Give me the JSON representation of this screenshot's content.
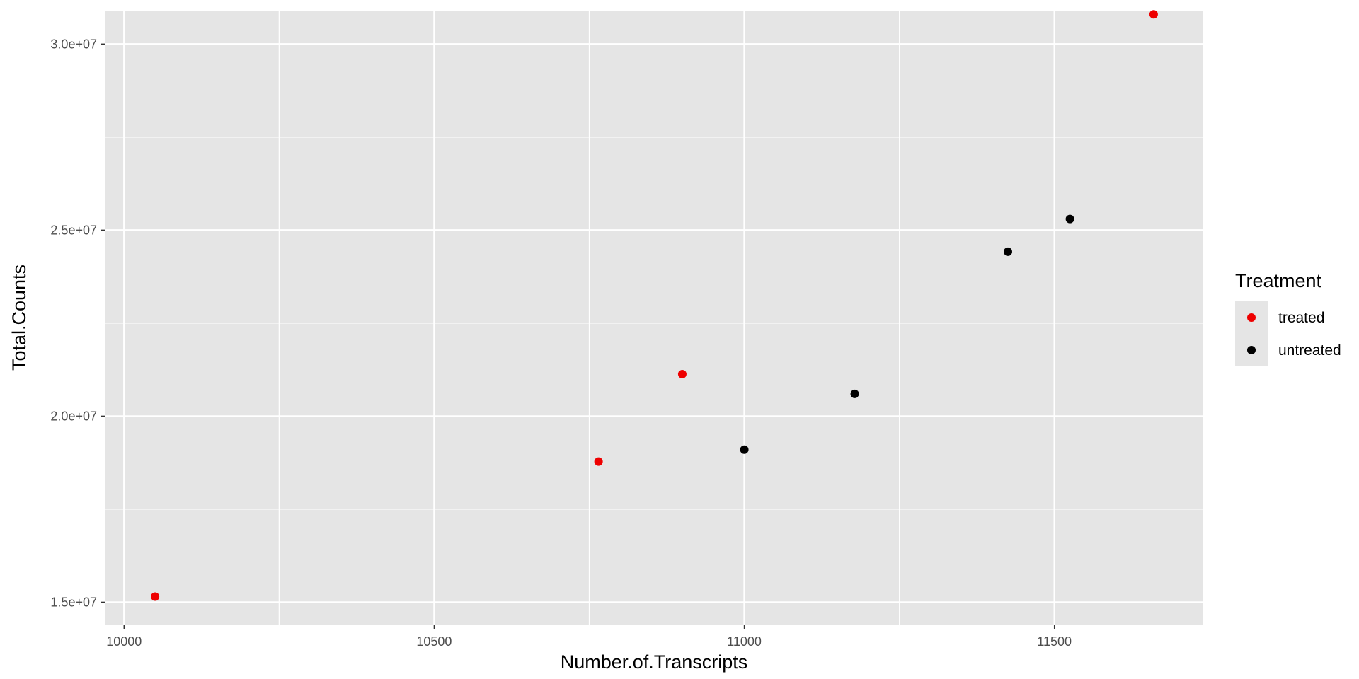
{
  "chart_data": {
    "type": "scatter",
    "xlabel": "Number.of.Transcripts",
    "ylabel": "Total.Counts",
    "xlim": [
      9970,
      11740
    ],
    "ylim": [
      14400000,
      30900000
    ],
    "x_ticks": [
      10000,
      10500,
      11000,
      11500
    ],
    "x_tick_labels": [
      "10000",
      "10500",
      "11000",
      "11500"
    ],
    "x_minor": [
      10250,
      10750,
      11250
    ],
    "y_ticks": [
      15000000,
      20000000,
      25000000,
      30000000
    ],
    "y_tick_labels": [
      "1.5e+07",
      "2.0e+07",
      "2.5e+07",
      "3.0e+07"
    ],
    "y_minor": [
      17500000,
      22500000,
      27500000
    ],
    "grid": true,
    "legend": {
      "title": "Treatment",
      "position": "right"
    },
    "series": [
      {
        "name": "treated",
        "color": "#ee0000",
        "points": [
          {
            "x": 10050,
            "y": 15150000
          },
          {
            "x": 10765,
            "y": 18780000
          },
          {
            "x": 10900,
            "y": 21130000
          },
          {
            "x": 11660,
            "y": 30800000
          }
        ]
      },
      {
        "name": "untreated",
        "color": "#000000",
        "points": [
          {
            "x": 11000,
            "y": 19100000
          },
          {
            "x": 11178,
            "y": 20600000
          },
          {
            "x": 11425,
            "y": 24420000
          },
          {
            "x": 11525,
            "y": 25300000
          }
        ]
      }
    ]
  }
}
